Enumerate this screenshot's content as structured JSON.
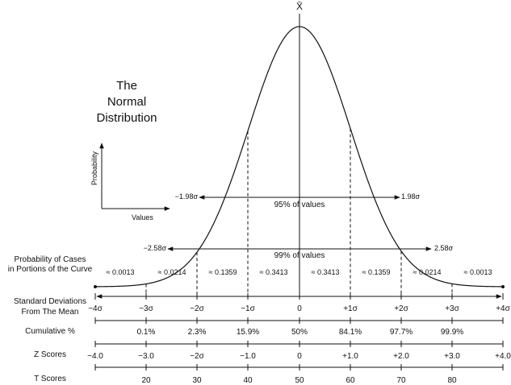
{
  "title": {
    "line1": "The",
    "line2": "Normal",
    "line3": "Distribution"
  },
  "xbar": "X̄",
  "axes_inset": {
    "ylabel": "Probability",
    "xlabel": "Values"
  },
  "intervals": {
    "i95": {
      "left": "−1.98σ",
      "right": "1.98σ",
      "label": "95% of values"
    },
    "i99": {
      "left": "−2.58σ",
      "right": "2.58σ",
      "label": "99% of values"
    }
  },
  "row_labels": {
    "prob_cases_1": "Probability of Cases",
    "prob_cases_2": "in Portions of the Curve",
    "std_dev_1": "Standard Deviations",
    "std_dev_2": "From The Mean",
    "cumulative": "Cumulative %",
    "z": "Z Scores",
    "t": "T Scores"
  },
  "portions": [
    "≈ 0.0013",
    "≈ 0.0214",
    "≈ 0.1359",
    "≈ 0.3413",
    "≈ 0.3413",
    "≈ 0.1359",
    "≈ 0.0214",
    "≈ 0.0013"
  ],
  "std_dev_ticks": [
    "−4σ",
    "−3σ",
    "−2σ",
    "−1σ",
    "0",
    "+1σ",
    "+2σ",
    "+3σ",
    "+4σ"
  ],
  "cumulative_pct": [
    "",
    "0.1%",
    "2.3%",
    "15.9%",
    "50%",
    "84.1%",
    "97.7%",
    "99.9%",
    ""
  ],
  "z_scores": [
    "−4.0",
    "−3.0",
    "−2σ",
    "−1.0",
    "0",
    "+1.0",
    "+2.0",
    "+3.0",
    "+4.0"
  ],
  "t_scores": [
    "",
    "20",
    "30",
    "40",
    "50",
    "60",
    "70",
    "80",
    ""
  ]
}
